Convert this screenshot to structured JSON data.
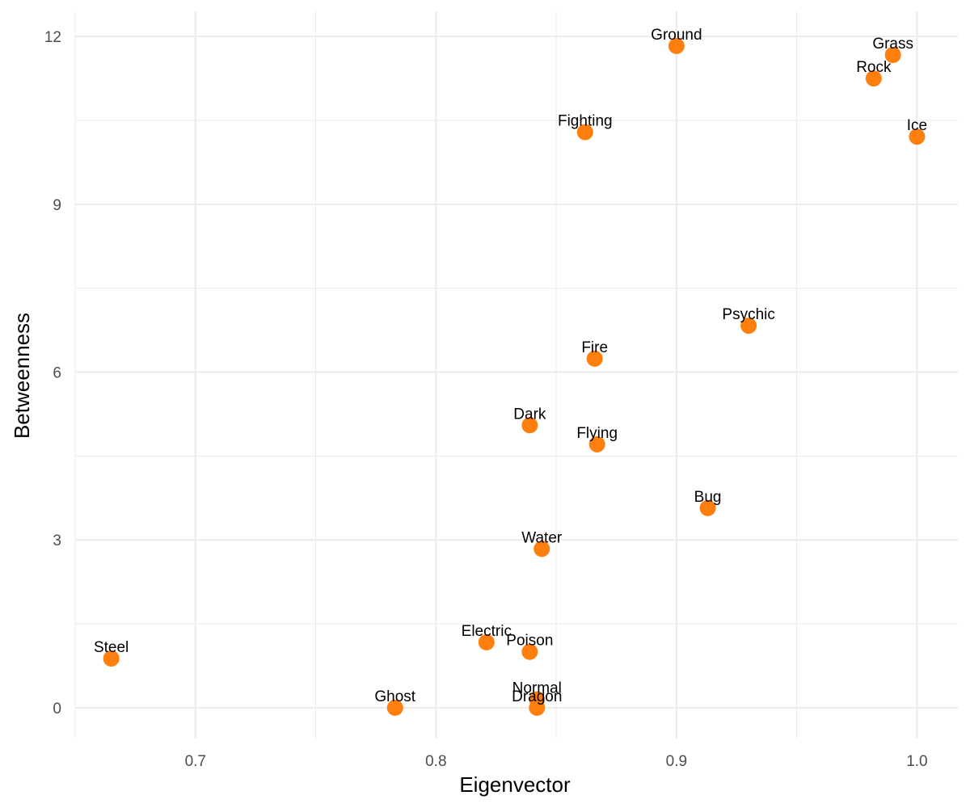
{
  "chart_data": {
    "type": "scatter",
    "title": "",
    "xlabel": "Eigenvector",
    "ylabel": "Betweenness",
    "xlim": [
      0.65,
      1.017
    ],
    "ylim": [
      -0.55,
      12.45
    ],
    "x_major_ticks": [
      0.7,
      0.8,
      0.9,
      1.0
    ],
    "x_tick_labels": [
      "0.7",
      "0.8",
      "0.9",
      "1.0"
    ],
    "x_minor_ticks": [
      0.65,
      0.75,
      0.85,
      0.95
    ],
    "y_major_ticks": [
      0,
      3,
      6,
      9,
      12
    ],
    "y_tick_labels": [
      "0",
      "3",
      "6",
      "9",
      "12"
    ],
    "y_minor_ticks": [
      1.5,
      4.5,
      7.5,
      10.5
    ],
    "grid": true,
    "legend": "none",
    "point_color": "#FF7F0E",
    "points": [
      {
        "label": "Ground",
        "x": 0.9,
        "y": 11.83
      },
      {
        "label": "Grass",
        "x": 0.99,
        "y": 11.67
      },
      {
        "label": "Rock",
        "x": 0.982,
        "y": 11.25
      },
      {
        "label": "Fighting",
        "x": 0.862,
        "y": 10.29
      },
      {
        "label": "Ice",
        "x": 1.0,
        "y": 10.21
      },
      {
        "label": "Psychic",
        "x": 0.93,
        "y": 6.83
      },
      {
        "label": "Fire",
        "x": 0.866,
        "y": 6.24
      },
      {
        "label": "Dark",
        "x": 0.839,
        "y": 5.05
      },
      {
        "label": "Flying",
        "x": 0.867,
        "y": 4.71
      },
      {
        "label": "Bug",
        "x": 0.913,
        "y": 3.57
      },
      {
        "label": "Water",
        "x": 0.844,
        "y": 2.84
      },
      {
        "label": "Electric",
        "x": 0.821,
        "y": 1.17
      },
      {
        "label": "Poison",
        "x": 0.839,
        "y": 1.0
      },
      {
        "label": "Steel",
        "x": 0.665,
        "y": 0.88
      },
      {
        "label": "Normal",
        "x": 0.842,
        "y": 0.15
      },
      {
        "label": "Ghost",
        "x": 0.783,
        "y": 0.0
      },
      {
        "label": "Dragon",
        "x": 0.842,
        "y": 0.0
      }
    ]
  }
}
